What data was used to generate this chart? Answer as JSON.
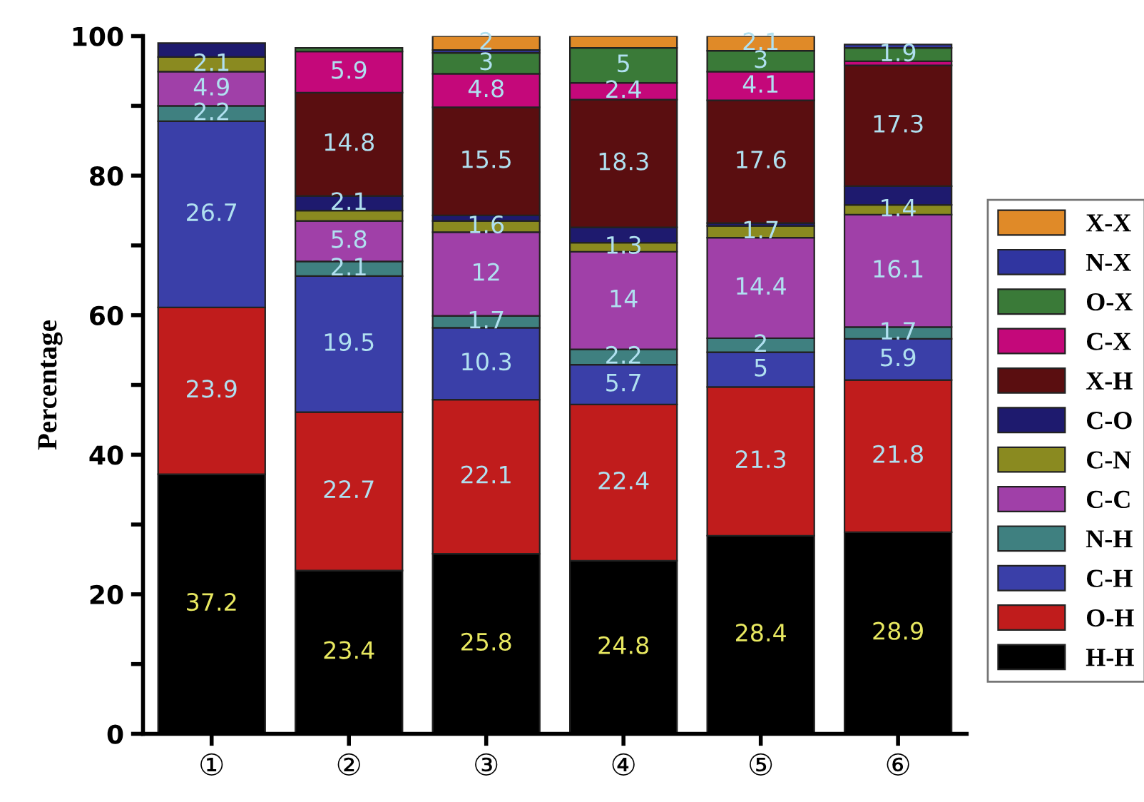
{
  "chart_data": {
    "type": "bar",
    "stacked": true,
    "ylabel": "Percentage",
    "categories": [
      "①",
      "②",
      "③",
      "④",
      "⑤",
      "⑥"
    ],
    "ylim": [
      0,
      100
    ],
    "yticks": [
      0,
      {
        "value": 10,
        "label": null
      },
      20,
      {
        "value": 30,
        "label": null
      },
      40,
      {
        "value": 50,
        "label": null
      },
      60,
      {
        "value": 70,
        "label": null
      },
      80,
      {
        "value": 90,
        "label": null
      },
      100
    ],
    "legend": "right",
    "grid": false,
    "series": [
      {
        "name": "H-H",
        "color": "#000000",
        "values": [
          37.2,
          23.4,
          25.8,
          24.8,
          28.4,
          28.9
        ],
        "value_labels": [
          "37.2",
          "23.4",
          "25.8",
          "24.8",
          "28.4",
          "28.9"
        ]
      },
      {
        "name": "O-H",
        "color": "#c01c1c",
        "values": [
          23.9,
          22.7,
          22.1,
          22.4,
          21.3,
          21.8
        ],
        "value_labels": [
          "23.9",
          "22.7",
          "22.1",
          "22.4",
          "21.3",
          "21.8"
        ]
      },
      {
        "name": "C-H",
        "color": "#3a3fa8",
        "values": [
          26.7,
          19.5,
          10.3,
          5.7,
          5,
          5.9
        ],
        "value_labels": [
          "26.7",
          "19.5",
          "10.3",
          "5.7",
          "5",
          "5.9"
        ]
      },
      {
        "name": "N-H",
        "color": "#3f8080",
        "values": [
          2.2,
          2.1,
          1.7,
          2.2,
          2,
          1.7
        ],
        "value_labels": [
          "2.2",
          "2.1",
          "1.7",
          "2.2",
          "2",
          "1.7"
        ]
      },
      {
        "name": "C-C",
        "color": "#a040a8",
        "values": [
          4.9,
          5.8,
          12,
          14,
          14.4,
          16.1
        ],
        "value_labels": [
          "4.9",
          "5.8",
          "12",
          "14",
          "14.4",
          "16.1"
        ]
      },
      {
        "name": "C-N",
        "color": "#8a8a20",
        "values": [
          2.1,
          1.5,
          1.6,
          1.3,
          1.7,
          1.4
        ],
        "value_labels": [
          "2.1",
          null,
          "1.6",
          "1.3",
          "1.7",
          "1.4"
        ]
      },
      {
        "name": "C-O",
        "color": "#1e1a6e",
        "values": [
          2,
          2.1,
          0.8,
          2.2,
          0.4,
          2.7
        ],
        "value_labels": [
          null,
          "2.1",
          null,
          null,
          null,
          null
        ]
      },
      {
        "name": "X-H",
        "color": "#5a0e10",
        "values": [
          null,
          14.8,
          15.5,
          18.3,
          17.6,
          17.3
        ],
        "value_labels": [
          null,
          "14.8",
          "15.5",
          "18.3",
          "17.6",
          "17.3"
        ]
      },
      {
        "name": "C-X",
        "color": "#c4087a",
        "values": [
          null,
          5.9,
          4.8,
          2.4,
          4.1,
          0.6
        ],
        "value_labels": [
          null,
          "5.9",
          "4.8",
          "2.4",
          "4.1",
          null
        ]
      },
      {
        "name": "O-X",
        "color": "#3a7a38",
        "values": [
          null,
          0.5,
          3,
          5,
          3,
          1.9
        ],
        "value_labels": [
          null,
          null,
          "3",
          "5",
          "3",
          "1.9"
        ]
      },
      {
        "name": "N-X",
        "color": "#3035a0",
        "values": [
          null,
          null,
          0.4,
          null,
          null,
          0.5
        ],
        "value_labels": [
          null,
          null,
          null,
          null,
          null,
          null
        ]
      },
      {
        "name": "X-X",
        "color": "#e08a28",
        "values": [
          null,
          null,
          2,
          1.7,
          2.1,
          null
        ],
        "value_labels": [
          null,
          null,
          "2",
          null,
          "2.1",
          null
        ]
      }
    ]
  }
}
